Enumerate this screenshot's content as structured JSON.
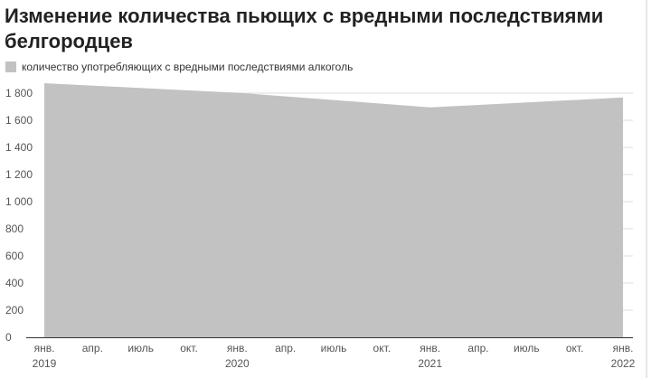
{
  "title": "Изменение количества пьющих с вредными последствиями белгородцев",
  "colors": {
    "area": "#c2c2c2",
    "grid": "#dddddd",
    "text": "#555555",
    "title": "#222222"
  },
  "chart_data": {
    "type": "area",
    "title": "Изменение количества пьющих с вредными последствиями белгородцев",
    "xlabel": "",
    "ylabel": "",
    "x": [
      "2019-01",
      "2020-01",
      "2021-01",
      "2022-01"
    ],
    "series": [
      {
        "name": "количество употребляющих с вредными последствиями алкоголь",
        "values": [
          1873,
          1803,
          1695,
          1768
        ]
      }
    ],
    "ylim": [
      0,
      1900
    ],
    "yticks": [
      0,
      200,
      400,
      600,
      800,
      1000,
      1200,
      1400,
      1600,
      1800
    ],
    "ytick_labels": [
      "0",
      "200",
      "400",
      "600",
      "800",
      "1 000",
      "1 200",
      "1 400",
      "1 600",
      "1 800"
    ],
    "xticks": [
      {
        "date": "2019-01",
        "label": "янв.",
        "year": "2019"
      },
      {
        "date": "2019-04",
        "label": "апр.",
        "year": ""
      },
      {
        "date": "2019-07",
        "label": "июль",
        "year": ""
      },
      {
        "date": "2019-10",
        "label": "окт.",
        "year": ""
      },
      {
        "date": "2020-01",
        "label": "янв.",
        "year": "2020"
      },
      {
        "date": "2020-04",
        "label": "апр.",
        "year": ""
      },
      {
        "date": "2020-07",
        "label": "июль",
        "year": ""
      },
      {
        "date": "2020-10",
        "label": "окт.",
        "year": ""
      },
      {
        "date": "2021-01",
        "label": "янв.",
        "year": "2021"
      },
      {
        "date": "2021-04",
        "label": "апр.",
        "year": ""
      },
      {
        "date": "2021-07",
        "label": "июль",
        "year": ""
      },
      {
        "date": "2021-10",
        "label": "окт.",
        "year": ""
      },
      {
        "date": "2022-01",
        "label": "янв.",
        "year": "2022"
      }
    ],
    "grid": true,
    "legend_position": "top-left"
  }
}
